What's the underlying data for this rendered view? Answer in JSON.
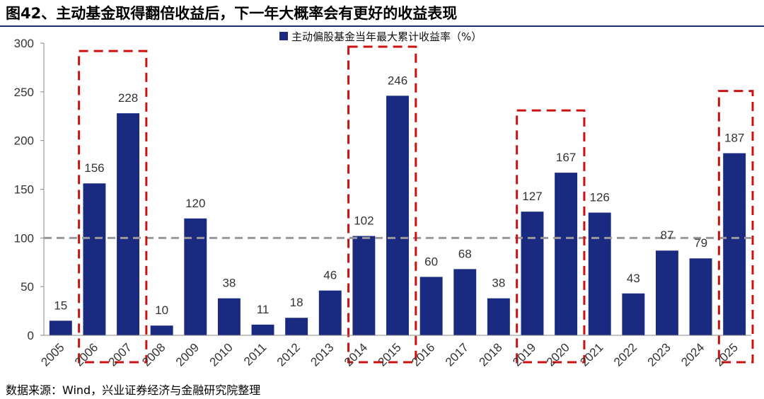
{
  "title": "图42、主动基金取得翻倍收益后，下一年大概率会有更好的收益表现",
  "source": "数据来源：Wind，兴业证券经济与金融研究院整理",
  "chart_data": {
    "type": "bar",
    "categories": [
      "2005",
      "2006",
      "2007",
      "2008",
      "2009",
      "2010",
      "2011",
      "2012",
      "2013",
      "2014",
      "2015",
      "2016",
      "2017",
      "2018",
      "2019",
      "2020",
      "2021",
      "2022",
      "2023",
      "2024",
      "2025"
    ],
    "series": [
      {
        "name": "主动偏股基金当年最大累计收益率（%）",
        "values": [
          15,
          156,
          228,
          10,
          120,
          38,
          11,
          18,
          46,
          102,
          246,
          60,
          68,
          38,
          127,
          167,
          126,
          43,
          87,
          79,
          187
        ],
        "color": "#1a2a80"
      }
    ],
    "ylim": [
      0,
      300
    ],
    "yticks": [
      0,
      50,
      100,
      150,
      200,
      250,
      300
    ],
    "reference_line": {
      "y": 100,
      "style": "dashed",
      "color": "#999999"
    },
    "highlight_groups": [
      {
        "from": "2006",
        "to": "2007",
        "color": "#cc1111"
      },
      {
        "from": "2014",
        "to": "2015",
        "color": "#cc1111"
      },
      {
        "from": "2019",
        "to": "2020",
        "color": "#cc1111"
      },
      {
        "from": "2025",
        "to": "2025",
        "color": "#cc1111"
      }
    ],
    "legend_position": "top-center",
    "grid": false
  }
}
